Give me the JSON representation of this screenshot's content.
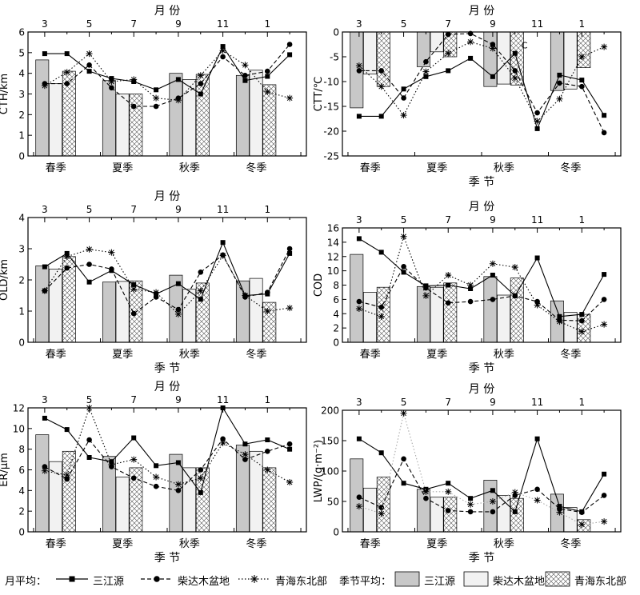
{
  "styles": {
    "series_colors": {
      "sanjiangyuan": "#000000",
      "qaidam": "#000000",
      "qinghai_ne": "#000000"
    },
    "bar_fills": {
      "sanjiangyuan": "#c8c8c8",
      "qaidam": "#f2f2f2",
      "qinghai_ne": "#ffffff"
    },
    "lwp_qinghai_ne_line_color": "#aaaaaa"
  },
  "legend": {
    "monthly_label": "月平均：",
    "seasonal_label": "季节平均：",
    "series": [
      {
        "key": "sanjiangyuan",
        "name": "三江源",
        "marker": "square",
        "line": "solid"
      },
      {
        "key": "qaidam",
        "name": "柴达木盆地",
        "marker": "circle",
        "line": "dashed"
      },
      {
        "key": "qinghai_ne",
        "name": "青海东北部",
        "marker": "asterisk",
        "line": "dotted"
      }
    ]
  },
  "chart_data": [
    {
      "type": "bar",
      "top_axis_label": "月 份",
      "bottom_axis_label": "",
      "ylabel": "CTH/km",
      "ylim": [
        0,
        6
      ],
      "yticks": [
        0,
        1,
        2,
        3,
        4,
        5,
        6
      ],
      "month_ticks": [
        "3",
        "5",
        "7",
        "9",
        "11",
        "1"
      ],
      "season_labels": [
        "春季",
        "夏季",
        "秋季",
        "冬季"
      ],
      "monthly": {
        "sanjiangyuan": [
          4.95,
          4.95,
          4.1,
          3.75,
          3.6,
          3.2,
          3.7,
          3.0,
          5.3,
          3.65,
          3.85,
          4.9
        ],
        "qaidam": [
          3.5,
          3.5,
          4.4,
          3.3,
          2.4,
          2.4,
          2.8,
          3.5,
          4.8,
          3.9,
          4.1,
          5.4
        ],
        "qinghai_ne": [
          3.4,
          4.05,
          4.95,
          3.6,
          3.7,
          2.8,
          2.7,
          3.9,
          5.1,
          4.4,
          3.1,
          2.8
        ]
      },
      "seasonal": {
        "sanjiangyuan": [
          4.65,
          3.65,
          4.0,
          3.9
        ],
        "qaidam": [
          3.5,
          3.0,
          3.7,
          4.15
        ],
        "qinghai_ne": [
          4.1,
          3.0,
          3.95,
          3.45
        ]
      }
    },
    {
      "type": "bar",
      "top_axis_label": "月 份",
      "bottom_axis_label": "季 节",
      "ylabel": "CTT/℃",
      "ylim": [
        -25,
        0
      ],
      "yticks": [
        -25,
        -20,
        -15,
        -10,
        -5,
        0
      ],
      "month_ticks": [
        "3",
        "5",
        "7",
        "9",
        "11",
        "1"
      ],
      "season_labels": [
        "春季",
        "夏季",
        "秋季",
        "冬季"
      ],
      "annotations": [
        "C"
      ],
      "monthly": {
        "sanjiangyuan": [
          -17.0,
          -17.0,
          -11.5,
          -9.0,
          -7.8,
          -5.3,
          -9.0,
          -4.3,
          -19.5,
          -8.7,
          -9.7,
          -16.8
        ],
        "qaidam": [
          -7.8,
          -7.8,
          -13.3,
          -6.0,
          -0.5,
          -0.3,
          -2.5,
          -7.8,
          -16.3,
          -10.3,
          -11.0,
          -20.3
        ],
        "qinghai_ne": [
          -6.8,
          -11.0,
          -16.8,
          -8.0,
          -4.3,
          -2.0,
          -3.3,
          -9.3,
          -18.0,
          -13.5,
          -5.0,
          -3.0
        ]
      },
      "seasonal": {
        "sanjiangyuan": [
          -15.3,
          -7.0,
          -11.0,
          -11.8
        ],
        "qaidam": [
          -8.5,
          -4.0,
          -10.5,
          -11.5
        ],
        "qinghai_ne": [
          -11.0,
          -5.0,
          -10.7,
          -7.2
        ]
      }
    },
    {
      "type": "bar",
      "top_axis_label": "月 份",
      "bottom_axis_label": "季 节",
      "ylabel": "OLD/km",
      "ylim": [
        0,
        4
      ],
      "yticks": [
        0,
        1,
        2,
        3,
        4
      ],
      "month_ticks": [
        "3",
        "5",
        "7",
        "9",
        "11",
        "1"
      ],
      "season_labels": [
        "春季",
        "夏季",
        "秋季",
        "冬季"
      ],
      "monthly": {
        "sanjiangyuan": [
          2.42,
          2.85,
          1.93,
          2.3,
          1.85,
          1.55,
          1.88,
          1.38,
          3.2,
          1.5,
          1.55,
          2.85
        ],
        "qaidam": [
          1.65,
          2.38,
          2.5,
          2.35,
          0.92,
          1.45,
          1.05,
          2.25,
          2.8,
          1.45,
          1.6,
          3.0
        ],
        "qinghai_ne": [
          1.65,
          2.75,
          2.98,
          2.88,
          1.7,
          1.6,
          0.9,
          1.65,
          2.78,
          1.5,
          1.0,
          1.1
        ]
      },
      "seasonal": {
        "sanjiangyuan": [
          2.45,
          1.93,
          2.15,
          1.97
        ],
        "qaidam": [
          2.35,
          1.95,
          1.7,
          2.05
        ],
        "qinghai_ne": [
          2.75,
          1.97,
          1.9,
          1.28
        ]
      }
    },
    {
      "type": "bar",
      "top_axis_label": "月 份",
      "bottom_axis_label": "季 节",
      "ylabel": "COD",
      "ylim": [
        0,
        16
      ],
      "yticks": [
        0,
        2,
        4,
        6,
        8,
        10,
        12,
        14,
        16
      ],
      "month_ticks": [
        "3",
        "5",
        "7",
        "9",
        "11",
        "1"
      ],
      "season_labels": [
        "春季",
        "夏季",
        "秋季",
        "冬季"
      ],
      "monthly": {
        "sanjiangyuan": [
          14.5,
          12.6,
          9.8,
          7.9,
          8.0,
          7.5,
          9.4,
          6.5,
          11.8,
          3.6,
          3.9,
          9.5
        ],
        "qaidam": [
          5.7,
          4.9,
          10.6,
          7.6,
          5.5,
          5.7,
          6.0,
          6.5,
          5.7,
          3.1,
          3.0,
          6.0
        ],
        "qinghai_ne": [
          4.7,
          3.6,
          14.8,
          6.5,
          9.4,
          8.0,
          11.0,
          10.5,
          5.2,
          2.9,
          1.5,
          2.5
        ]
      },
      "seasonal": {
        "sanjiangyuan": [
          12.3,
          7.8,
          9.2,
          5.8
        ],
        "qaidam": [
          7.0,
          7.7,
          6.6,
          4.2
        ],
        "qinghai_ne": [
          7.7,
          8.3,
          9.0,
          3.9
        ]
      }
    },
    {
      "type": "bar",
      "top_axis_label": "月 份",
      "bottom_axis_label": "季 节",
      "ylabel": "ER/μm",
      "ylim": [
        0,
        12
      ],
      "yticks": [
        0,
        2,
        4,
        6,
        8,
        10,
        12
      ],
      "month_ticks": [
        "3",
        "5",
        "7",
        "9",
        "11",
        "1"
      ],
      "season_labels": [
        "春季",
        "夏季",
        "秋季",
        "冬季"
      ],
      "monthly": {
        "sanjiangyuan": [
          11.0,
          9.9,
          7.2,
          6.8,
          9.1,
          6.4,
          6.7,
          3.8,
          12.0,
          8.5,
          8.9,
          8.0
        ],
        "qaidam": [
          6.3,
          5.1,
          8.9,
          6.3,
          5.2,
          4.4,
          4.0,
          6.0,
          9.0,
          7.0,
          7.8,
          8.5
        ],
        "qinghai_ne": [
          5.9,
          5.5,
          12.0,
          6.5,
          7.0,
          5.3,
          4.6,
          5.2,
          8.6,
          7.5,
          6.0,
          4.8
        ]
      },
      "seasonal": {
        "sanjiangyuan": [
          9.4,
          7.3,
          7.5,
          8.4
        ],
        "qaidam": [
          6.8,
          5.3,
          6.2,
          7.8
        ],
        "qinghai_ne": [
          7.8,
          6.2,
          6.2,
          6.2
        ]
      }
    },
    {
      "type": "bar",
      "top_axis_label": "月 份",
      "bottom_axis_label": "季 节",
      "ylabel": "LWP/(g·m⁻²)",
      "ylim": [
        0,
        200
      ],
      "yticks": [
        0,
        50,
        100,
        150,
        200
      ],
      "month_ticks": [
        "3",
        "5",
        "7",
        "9",
        "11",
        "1"
      ],
      "season_labels": [
        "春季",
        "夏季",
        "秋季",
        "冬季"
      ],
      "monthly": {
        "sanjiangyuan": [
          153,
          130,
          80,
          70,
          80,
          55,
          68,
          33,
          153,
          42,
          33,
          95
        ],
        "qaidam": [
          57,
          40,
          120,
          55,
          35,
          33,
          33,
          60,
          70,
          38,
          32,
          60
        ],
        "qinghai_ne": [
          42,
          30,
          195,
          66,
          66,
          45,
          50,
          65,
          52,
          32,
          12,
          17
        ]
      },
      "seasonal": {
        "sanjiangyuan": [
          120,
          70,
          85,
          62
        ],
        "qaidam": [
          72,
          57,
          60,
          40
        ],
        "qinghai_ne": [
          90,
          57,
          55,
          20
        ]
      }
    }
  ]
}
